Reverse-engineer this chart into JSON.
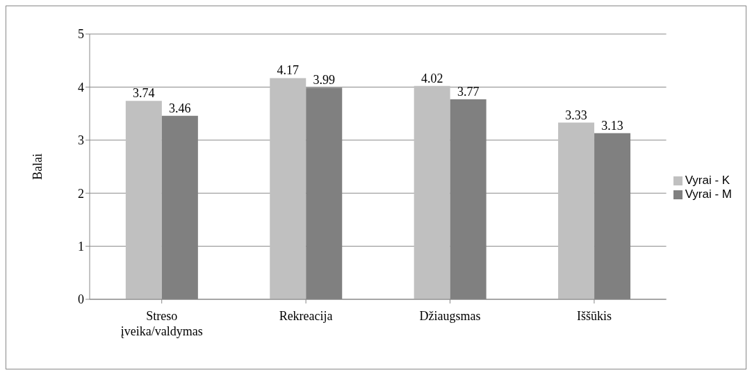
{
  "chart_data": {
    "type": "bar",
    "ylabel": "Balai",
    "categories": [
      "Streso įveika/valdymas",
      "Rekreacija",
      "Džiaugsmas",
      "Iššūkis"
    ],
    "series": [
      {
        "name": "Vyrai - K",
        "color": "#c0c0c0",
        "values": [
          3.74,
          4.17,
          4.02,
          3.33
        ]
      },
      {
        "name": "Vyrai - M",
        "color": "#808080",
        "values": [
          3.46,
          3.99,
          3.77,
          3.13
        ]
      }
    ],
    "ylim": [
      0,
      5
    ],
    "yticks": [
      0,
      1,
      2,
      3,
      4,
      5
    ],
    "grid": "y",
    "legend": "right",
    "data_labels": true
  }
}
